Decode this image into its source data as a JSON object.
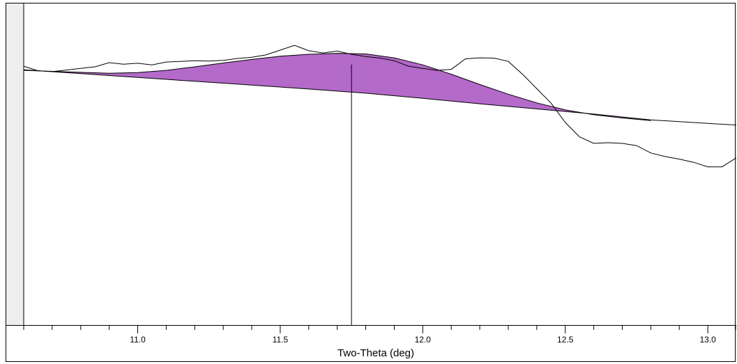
{
  "chart_data": {
    "type": "line",
    "xlabel": "Two-Theta (deg)",
    "ylabel": "",
    "xlim": [
      10.6,
      13.1
    ],
    "ylim": [
      0,
      100
    ],
    "x_tick_labels": [
      "11.0",
      "11.5",
      "12.0",
      "12.5",
      "13.0"
    ],
    "x_ticks_major": [
      11.0,
      11.5,
      12.0,
      12.5,
      13.0
    ],
    "x_ticks_minor_step": 0.1,
    "grid": false,
    "legend": "none",
    "colors": {
      "fill": "#b36ac8",
      "line": "#000000",
      "sidebar": "#eeeeee"
    },
    "peak_marker_x": 11.75,
    "peak_marker_y": 81,
    "series": [
      {
        "role": "raw-pattern",
        "x": [
          10.6,
          10.65,
          10.7,
          10.75,
          10.8,
          10.85,
          10.9,
          10.95,
          11.0,
          11.05,
          11.1,
          11.15,
          11.2,
          11.25,
          11.3,
          11.35,
          11.4,
          11.45,
          11.5,
          11.55,
          11.6,
          11.65,
          11.7,
          11.75,
          11.8,
          11.85,
          11.9,
          11.95,
          12.0,
          12.05,
          12.1,
          12.15,
          12.2,
          12.25,
          12.3,
          12.35,
          12.4,
          12.45,
          12.5,
          12.55,
          12.6,
          12.65,
          12.7,
          12.75,
          12.8,
          12.85,
          12.9,
          12.95,
          13.0,
          13.05,
          13.1
        ],
        "y": [
          80.5,
          79.1,
          78.8,
          79.3,
          79.8,
          80.3,
          81.6,
          81.1,
          81.4,
          80.9,
          81.8,
          82.0,
          82.2,
          82.1,
          82.3,
          82.9,
          83.3,
          84.0,
          85.5,
          87.0,
          85.3,
          84.6,
          85.2,
          84.2,
          83.5,
          83.0,
          82.2,
          80.5,
          79.8,
          79.2,
          79.5,
          82.8,
          83.1,
          83.0,
          82.0,
          78.0,
          73.5,
          69.0,
          63.0,
          58.5,
          56.5,
          56.7,
          56.5,
          55.8,
          53.5,
          52.4,
          51.6,
          50.6,
          49.2,
          49.2,
          52.0
        ]
      },
      {
        "role": "fitted-peak",
        "x": [
          10.6,
          10.7,
          10.8,
          10.9,
          11.0,
          11.1,
          11.2,
          11.3,
          11.4,
          11.5,
          11.6,
          11.7,
          11.8,
          11.9,
          12.0,
          12.1,
          12.2,
          12.3,
          12.4,
          12.5,
          12.6,
          12.7,
          12.8
        ],
        "y": [
          79.2,
          78.9,
          78.6,
          78.3,
          78.5,
          79.2,
          80.3,
          81.5,
          82.6,
          83.6,
          84.2,
          84.5,
          84.3,
          83.1,
          80.9,
          78.0,
          74.8,
          71.8,
          69.1,
          66.9,
          65.4,
          64.4,
          63.6
        ]
      },
      {
        "role": "background",
        "x": [
          10.6,
          10.8,
          11.0,
          11.2,
          11.4,
          11.6,
          11.8,
          12.0,
          12.2,
          12.4,
          12.6,
          12.8,
          13.0,
          13.1
        ],
        "y": [
          79.4,
          78.2,
          77.0,
          75.8,
          74.6,
          73.4,
          72.1,
          70.5,
          68.8,
          67.2,
          65.6,
          63.8,
          62.7,
          62.2
        ]
      }
    ]
  }
}
